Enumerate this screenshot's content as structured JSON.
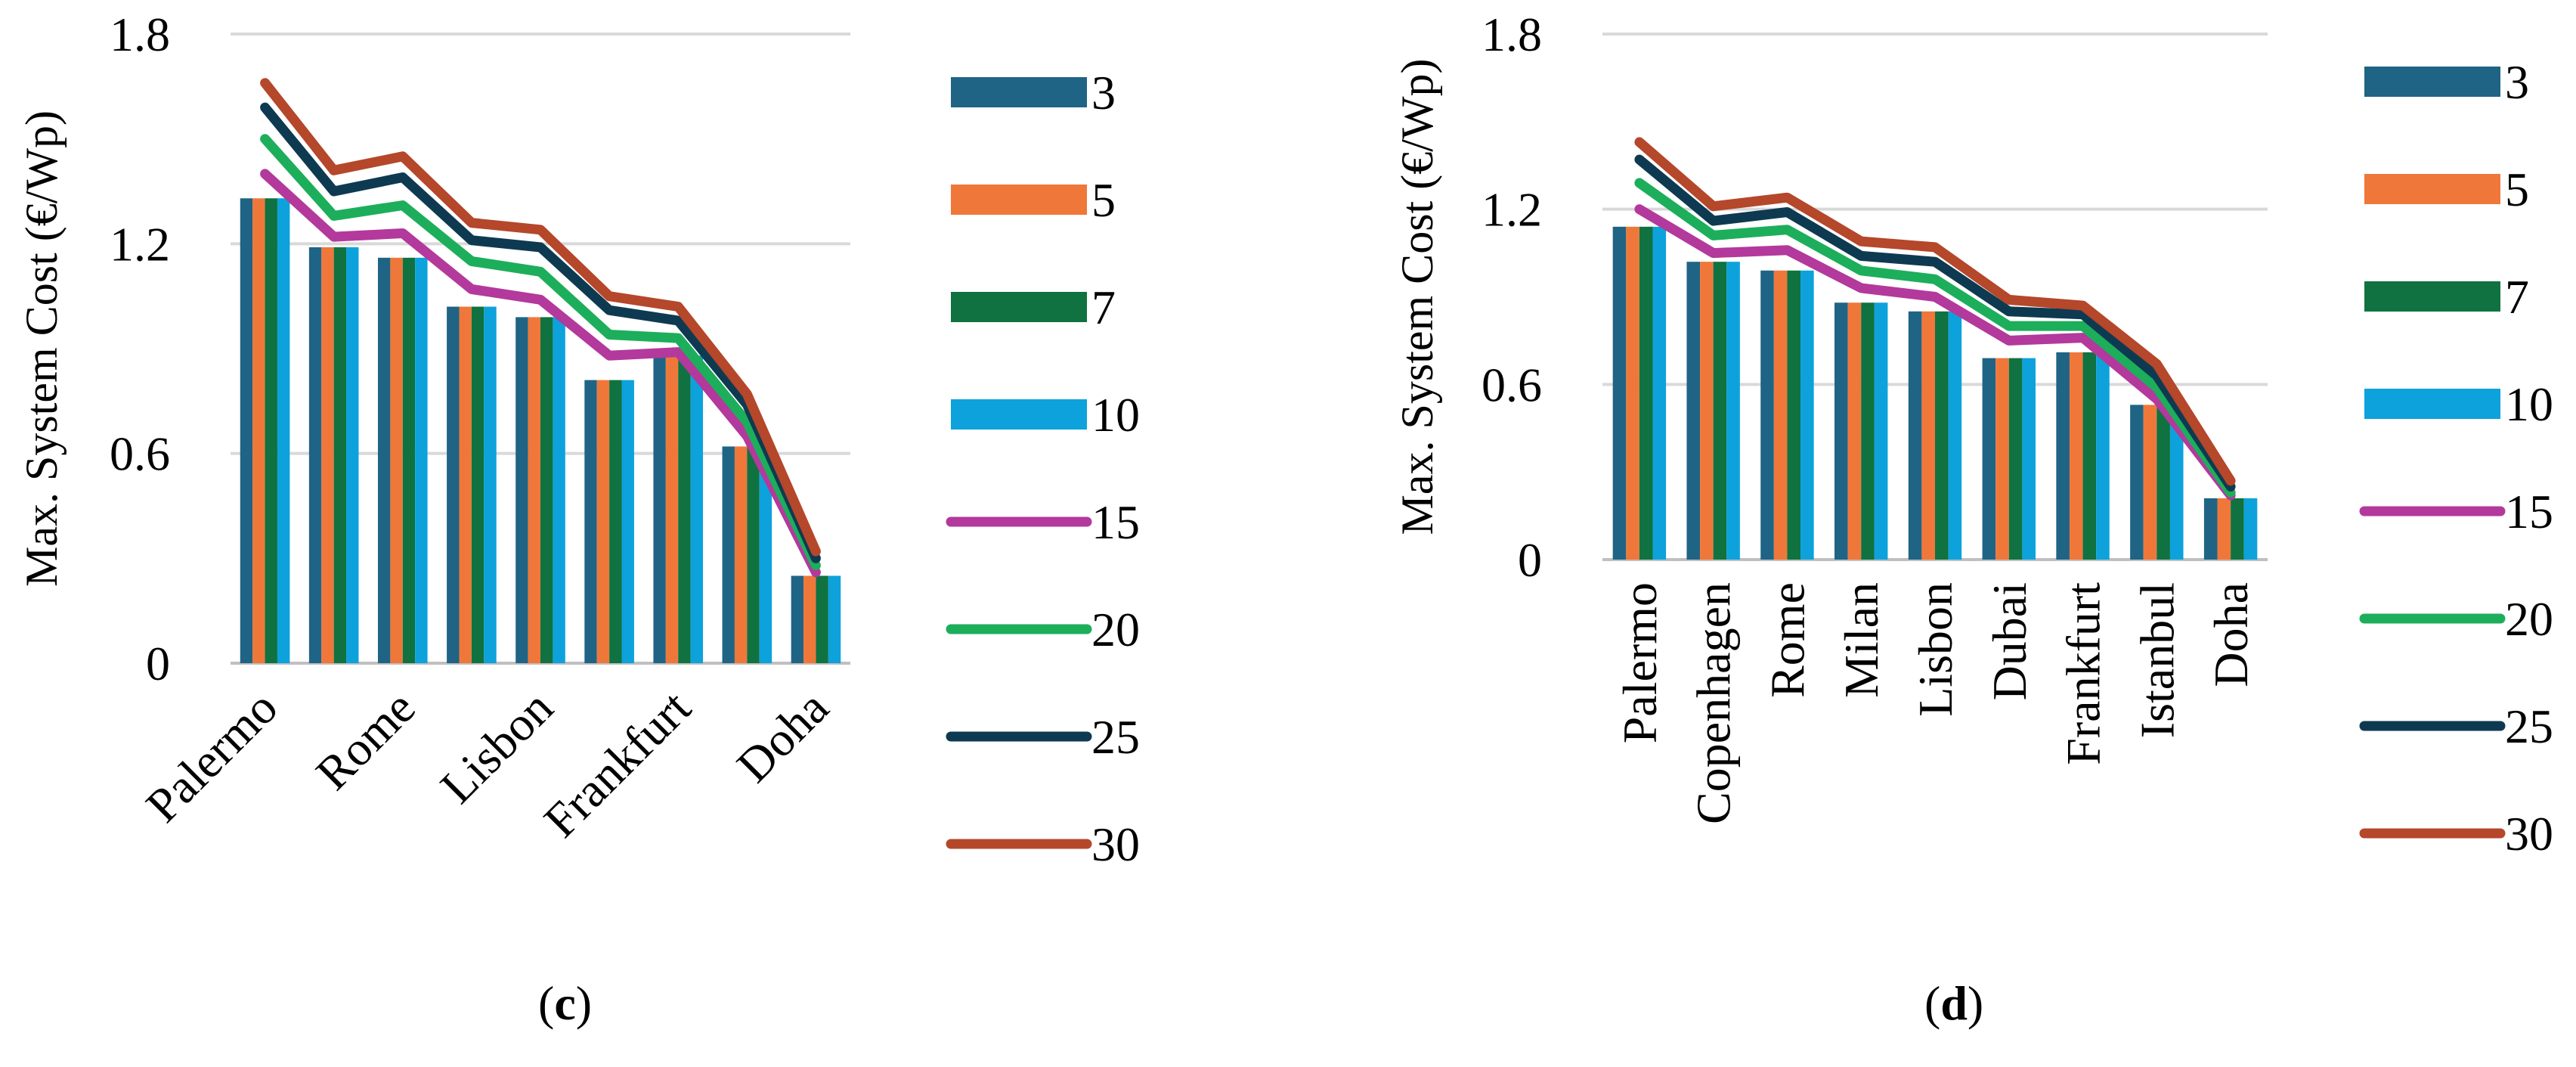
{
  "colors": {
    "3": "#1f6485",
    "5": "#f0773a",
    "7": "#0f7240",
    "10": "#0da2db",
    "15": "#b3399c",
    "20": "#1dae5b",
    "25": "#0e3a51",
    "30": "#b5472a",
    "grid": "#d9d9d9",
    "axis": "#bfbfbf"
  },
  "legend": [
    "3",
    "5",
    "7",
    "10",
    "15",
    "20",
    "25",
    "30"
  ],
  "chart_data": [
    {
      "type": "bar",
      "panel": "c",
      "caption_open": "(",
      "caption_letter": "c",
      "caption_close": ")",
      "ylabel": "Max. System Cost (€/Wp)",
      "ylim": [
        0,
        1.8
      ],
      "yticks": [
        "0",
        "0.6",
        "1.2",
        "1.8"
      ],
      "categories": [
        "Palermo",
        "Rome",
        "Lisbon",
        "Frankfurt",
        "Doha"
      ],
      "x_tick_indices": [
        0,
        2,
        4,
        6,
        8
      ],
      "n_groups": 9,
      "bar_series": [
        {
          "name": "3",
          "values": [
            1.33,
            1.19,
            1.16,
            1.02,
            0.99,
            0.81,
            0.88,
            0.62,
            0.25
          ]
        },
        {
          "name": "5",
          "values": [
            1.33,
            1.19,
            1.16,
            1.02,
            0.99,
            0.81,
            0.88,
            0.62,
            0.25
          ]
        },
        {
          "name": "7",
          "values": [
            1.33,
            1.19,
            1.16,
            1.02,
            0.99,
            0.81,
            0.88,
            0.62,
            0.25
          ]
        },
        {
          "name": "10",
          "values": [
            1.33,
            1.19,
            1.16,
            1.02,
            0.99,
            0.81,
            0.88,
            0.62,
            0.25
          ]
        }
      ],
      "line_series": [
        {
          "name": "15",
          "values": [
            1.4,
            1.22,
            1.23,
            1.07,
            1.04,
            0.88,
            0.89,
            0.65,
            0.26
          ]
        },
        {
          "name": "20",
          "values": [
            1.5,
            1.28,
            1.31,
            1.15,
            1.12,
            0.94,
            0.93,
            0.69,
            0.28
          ]
        },
        {
          "name": "25",
          "values": [
            1.59,
            1.35,
            1.39,
            1.21,
            1.19,
            1.01,
            0.98,
            0.74,
            0.3
          ]
        },
        {
          "name": "30",
          "values": [
            1.66,
            1.41,
            1.45,
            1.26,
            1.24,
            1.05,
            1.02,
            0.77,
            0.32
          ]
        }
      ]
    },
    {
      "type": "bar",
      "panel": "d",
      "caption_open": "(",
      "caption_letter": "d",
      "caption_close": ")",
      "ylabel": "Max. System Cost (€/Wp)",
      "ylim": [
        0,
        1.8
      ],
      "yticks": [
        "0",
        "0.6",
        "1.2",
        "1.8"
      ],
      "categories": [
        "Palermo",
        "Copenhagen",
        "Rome",
        "Milan",
        "Lisbon",
        "Dubai",
        "Frankfurt",
        "Istanbul",
        "Doha"
      ],
      "x_tick_indices": [
        0,
        1,
        2,
        3,
        4,
        5,
        6,
        7,
        8
      ],
      "n_groups": 9,
      "bar_series": [
        {
          "name": "3",
          "values": [
            1.14,
            1.02,
            0.99,
            0.88,
            0.85,
            0.69,
            0.71,
            0.53,
            0.21
          ]
        },
        {
          "name": "5",
          "values": [
            1.14,
            1.02,
            0.99,
            0.88,
            0.85,
            0.69,
            0.71,
            0.53,
            0.21
          ]
        },
        {
          "name": "7",
          "values": [
            1.14,
            1.02,
            0.99,
            0.88,
            0.85,
            0.69,
            0.71,
            0.53,
            0.21
          ]
        },
        {
          "name": "10",
          "values": [
            1.14,
            1.02,
            0.99,
            0.88,
            0.85,
            0.69,
            0.71,
            0.53,
            0.21
          ]
        }
      ],
      "line_series": [
        {
          "name": "15",
          "values": [
            1.2,
            1.05,
            1.06,
            0.93,
            0.9,
            0.75,
            0.76,
            0.55,
            0.22
          ]
        },
        {
          "name": "20",
          "values": [
            1.29,
            1.11,
            1.13,
            0.99,
            0.96,
            0.8,
            0.8,
            0.59,
            0.23
          ]
        },
        {
          "name": "25",
          "values": [
            1.37,
            1.16,
            1.19,
            1.04,
            1.02,
            0.85,
            0.84,
            0.63,
            0.25
          ]
        },
        {
          "name": "30",
          "values": [
            1.43,
            1.21,
            1.24,
            1.09,
            1.07,
            0.89,
            0.87,
            0.67,
            0.27
          ]
        }
      ]
    }
  ]
}
